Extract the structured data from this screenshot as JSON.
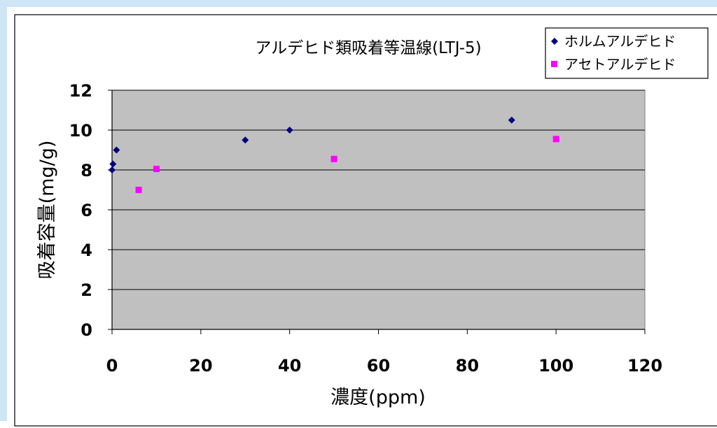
{
  "chart_data": {
    "type": "scatter",
    "title": "アルデヒド類吸着等温線(LTJ-5)",
    "xlabel": "濃度(ppm)",
    "ylabel": "吸着容量(mg/g)",
    "xlim": [
      0,
      120
    ],
    "ylim": [
      0,
      12
    ],
    "x_ticks": [
      "0",
      "20",
      "40",
      "60",
      "80",
      "100",
      "120"
    ],
    "y_ticks": [
      "0",
      "2",
      "4",
      "6",
      "8",
      "10",
      "12"
    ],
    "grid": "horizontal",
    "legend_position": "top-right",
    "plot_background": "#c0c0c0",
    "series": [
      {
        "name": "ホルムアルデヒド",
        "marker": "diamond",
        "color": "#000080",
        "points": [
          [
            0,
            8.0
          ],
          [
            0.2,
            8.3
          ],
          [
            1,
            9.0
          ],
          [
            30,
            9.5
          ],
          [
            40,
            10.0
          ],
          [
            90,
            10.5
          ]
        ]
      },
      {
        "name": "アセトアルデヒド",
        "marker": "square",
        "color": "#ff00ff",
        "points": [
          [
            6,
            7.0
          ],
          [
            10,
            8.05
          ],
          [
            50,
            8.55
          ],
          [
            100,
            9.55
          ]
        ]
      }
    ]
  }
}
